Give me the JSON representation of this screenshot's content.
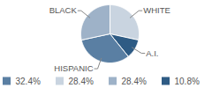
{
  "chart_data": {
    "type": "pie",
    "categories": [
      "HISPANIC",
      "WHITE",
      "BLACK",
      "A.I."
    ],
    "values": [
      32.4,
      28.4,
      28.4,
      10.8
    ],
    "value_labels": [
      "32.4%",
      "28.4%",
      "28.4%",
      "10.8%"
    ],
    "colors": [
      "#5a7fa3",
      "#c9d4e0",
      "#9eb2c8",
      "#2e5b84"
    ],
    "legend": "bottom"
  }
}
